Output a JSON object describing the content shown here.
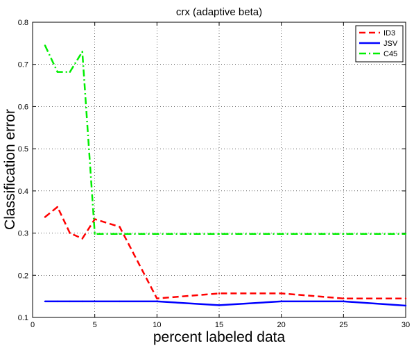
{
  "chart_data": {
    "type": "line",
    "title": "crx (adaptive beta)",
    "xlabel": "percent labeled data",
    "ylabel": "Classification error",
    "xlim": [
      0,
      30
    ],
    "ylim": [
      0.1,
      0.8
    ],
    "xticks": [
      0,
      5,
      10,
      15,
      20,
      25,
      30
    ],
    "yticks": [
      0.1,
      0.2,
      0.3,
      0.4,
      0.5,
      0.6,
      0.7,
      0.8
    ],
    "grid": true,
    "legend_position": "top-right",
    "series": [
      {
        "name": "ID3",
        "color": "#ff0000",
        "style": "dashed",
        "x": [
          1,
          2,
          3,
          4,
          5,
          7,
          10,
          15,
          20,
          25,
          30
        ],
        "y": [
          0.338,
          0.362,
          0.3,
          0.287,
          0.333,
          0.315,
          0.145,
          0.157,
          0.157,
          0.145,
          0.145
        ]
      },
      {
        "name": "JSV",
        "color": "#0000ff",
        "style": "solid",
        "x": [
          1,
          2,
          3,
          4,
          5,
          7,
          10,
          15,
          20,
          25,
          30
        ],
        "y": [
          0.138,
          0.138,
          0.138,
          0.138,
          0.138,
          0.138,
          0.138,
          0.129,
          0.138,
          0.138,
          0.128
        ]
      },
      {
        "name": "C45",
        "color": "#00ee00",
        "style": "dashdot",
        "x": [
          1,
          2,
          3,
          4,
          5,
          7,
          10,
          15,
          20,
          25,
          30
        ],
        "y": [
          0.745,
          0.682,
          0.682,
          0.73,
          0.298,
          0.298,
          0.298,
          0.298,
          0.298,
          0.298,
          0.298
        ]
      }
    ]
  }
}
